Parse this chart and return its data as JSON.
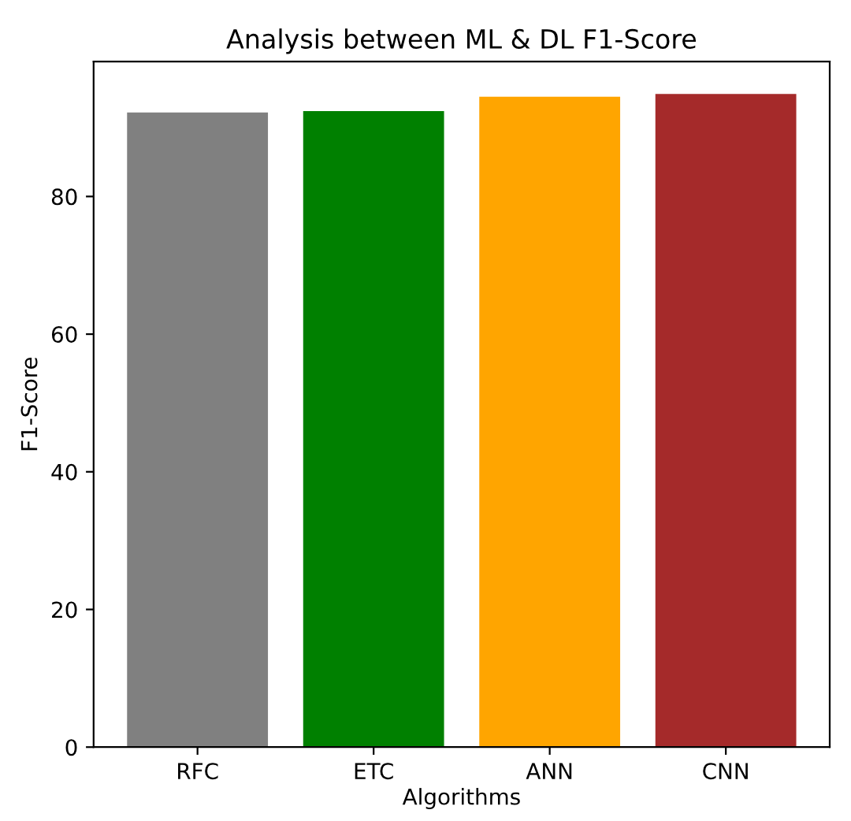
{
  "chart_data": {
    "type": "bar",
    "title": "Analysis between ML & DL F1-Score",
    "xlabel": "Algorithms",
    "ylabel": "F1-Score",
    "categories": [
      "RFC",
      "ETC",
      "ANN",
      "CNN"
    ],
    "values": [
      92.2,
      92.4,
      94.5,
      94.9
    ],
    "colors": [
      "#808080",
      "#008000",
      "#ffa500",
      "#a52a2a"
    ],
    "ylim": [
      0,
      99.6
    ],
    "yticks": [
      0,
      20,
      40,
      60,
      80
    ],
    "grid": false
  }
}
